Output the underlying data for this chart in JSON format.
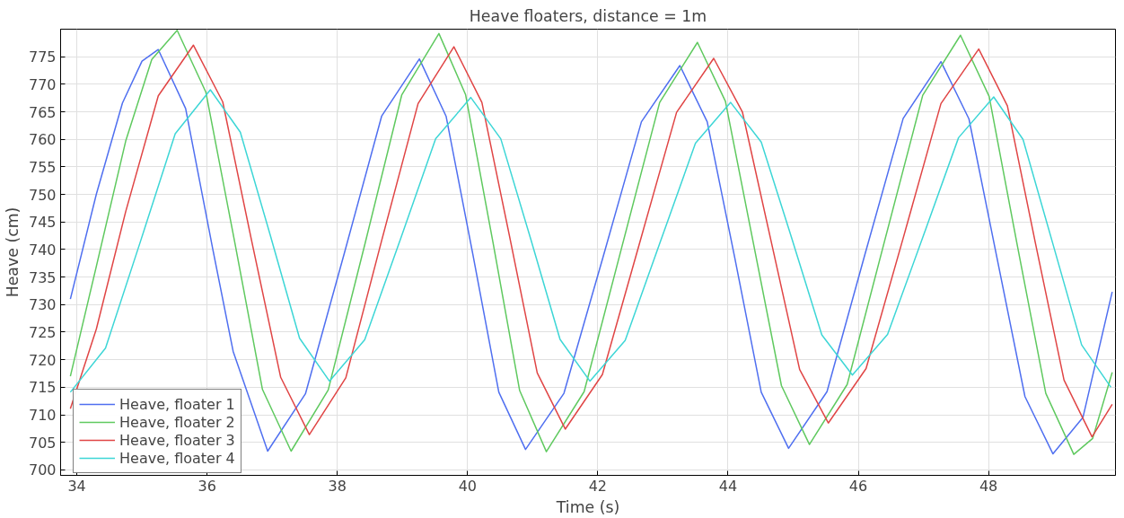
{
  "chart_data": {
    "type": "line",
    "title": "Heave floaters, distance = 1m",
    "xlabel": "Time (s)",
    "ylabel": "Heave (cm)",
    "xlim": [
      33.75,
      49.95
    ],
    "ylim": [
      699,
      780
    ],
    "xticks": [
      34,
      36,
      38,
      40,
      42,
      44,
      46,
      48
    ],
    "yticks": [
      700,
      705,
      710,
      715,
      720,
      725,
      730,
      735,
      740,
      745,
      750,
      755,
      760,
      765,
      770,
      775
    ],
    "grid": true,
    "legend": "bottom left",
    "series": [
      {
        "name": "Heave, floater 1",
        "color": "#4f6ff0",
        "x": [
          33.9,
          34.3,
          34.7,
          35.0,
          35.25,
          35.67,
          36.09,
          36.4,
          36.93,
          37.51,
          38.1,
          38.68,
          39.26,
          39.67,
          40.08,
          40.48,
          40.89,
          41.48,
          42.08,
          42.67,
          43.26,
          43.68,
          44.1,
          44.51,
          44.93,
          45.52,
          46.1,
          46.69,
          47.27,
          47.7,
          48.13,
          48.56,
          48.99,
          49.45,
          49.9
        ],
        "values": [
          731.0,
          750.1,
          766.6,
          774.2,
          776.3,
          765.6,
          739.9,
          721.5,
          703.4,
          713.8,
          739.0,
          764.2,
          774.6,
          764.2,
          739.2,
          714.1,
          703.7,
          713.9,
          738.6,
          763.2,
          773.4,
          763.2,
          738.7,
          714.1,
          703.9,
          714.2,
          739.0,
          763.8,
          774.1,
          763.7,
          738.5,
          713.3,
          702.9,
          709.5,
          732.3
        ]
      },
      {
        "name": "Heave, floater 2",
        "color": "#5fc95f",
        "x": [
          33.9,
          34.3,
          34.75,
          35.15,
          35.54,
          35.98,
          36.42,
          36.85,
          37.29,
          37.86,
          38.43,
          38.99,
          39.56,
          39.97,
          40.39,
          40.8,
          41.21,
          41.79,
          42.37,
          42.95,
          43.53,
          43.96,
          44.39,
          44.82,
          45.25,
          45.83,
          46.41,
          46.99,
          47.57,
          48.01,
          48.44,
          48.88,
          49.31,
          49.6,
          49.9
        ],
        "values": [
          717.0,
          737.0,
          759.7,
          774.5,
          779.8,
          768.6,
          741.6,
          714.6,
          703.4,
          714.5,
          741.3,
          768.1,
          779.2,
          768.1,
          741.3,
          714.4,
          703.3,
          714.2,
          740.5,
          766.7,
          777.6,
          766.9,
          741.1,
          715.3,
          704.6,
          715.5,
          741.8,
          768.0,
          778.9,
          767.8,
          740.9,
          713.9,
          702.8,
          705.7,
          717.7
        ]
      },
      {
        "name": "Heave, floater 3",
        "color": "#e04545",
        "x": [
          33.9,
          34.3,
          34.75,
          35.25,
          35.79,
          36.24,
          36.68,
          37.13,
          37.57,
          38.13,
          38.68,
          39.24,
          39.79,
          40.22,
          40.65,
          41.07,
          41.5,
          42.07,
          42.64,
          43.21,
          43.78,
          44.22,
          44.66,
          45.1,
          45.54,
          46.12,
          46.7,
          47.27,
          47.85,
          48.29,
          48.72,
          49.16,
          49.59,
          49.9
        ],
        "values": [
          711.1,
          725.6,
          746.9,
          767.9,
          777.1,
          766.8,
          741.8,
          716.8,
          706.4,
          716.7,
          741.6,
          766.5,
          776.8,
          766.7,
          742.1,
          717.6,
          707.4,
          717.3,
          741.1,
          764.9,
          774.7,
          765.0,
          741.6,
          718.2,
          708.5,
          718.4,
          742.5,
          766.5,
          776.4,
          766.1,
          741.2,
          716.3,
          706.0,
          711.9
        ]
      },
      {
        "name": "Heave, floater 4",
        "color": "#3dd6d6",
        "x": [
          33.9,
          34.44,
          34.98,
          35.51,
          36.05,
          36.51,
          36.97,
          37.42,
          37.88,
          38.42,
          38.97,
          39.51,
          40.05,
          40.51,
          40.97,
          41.42,
          41.88,
          42.42,
          42.96,
          43.5,
          44.04,
          44.51,
          44.98,
          45.44,
          45.91,
          46.45,
          47.0,
          47.54,
          48.08,
          48.53,
          48.98,
          49.43,
          49.88
        ],
        "values": [
          714.1,
          722.1,
          741.6,
          761.0,
          769.0,
          761.3,
          742.6,
          723.9,
          716.1,
          723.6,
          741.9,
          760.1,
          767.6,
          760.1,
          741.9,
          723.7,
          716.1,
          723.5,
          741.4,
          759.3,
          766.7,
          759.5,
          742.0,
          724.5,
          717.2,
          724.6,
          742.5,
          760.3,
          767.7,
          760.0,
          741.4,
          722.7,
          715.0
        ]
      }
    ]
  }
}
